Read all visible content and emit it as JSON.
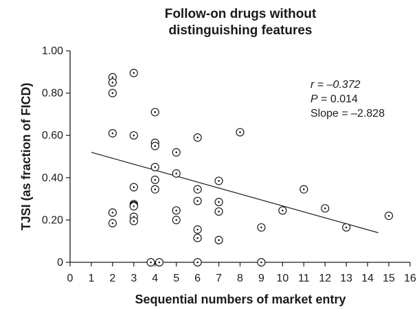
{
  "chart_data": {
    "type": "scatter",
    "title_lines": [
      "Follow-on drugs without",
      "distinguishing features"
    ],
    "xlabel": "Sequential numbers of market entry",
    "ylabel": "TJSI (as fraction of FICD)",
    "xlim": [
      0,
      16
    ],
    "ylim": [
      0,
      1.0
    ],
    "x_ticks": [
      "0",
      "1",
      "2",
      "3",
      "4",
      "5",
      "6",
      "7",
      "8",
      "9",
      "10",
      "11",
      "12",
      "13",
      "14",
      "15",
      "16"
    ],
    "y_ticks": [
      "0",
      "0.20",
      "0.40",
      "0.60",
      "0.80",
      "1.00"
    ],
    "grid": false,
    "stats": {
      "r_label": "r",
      "r_value": " = –0.372",
      "p_label": "P",
      "p_value": " = 0.014",
      "slope_text": "Slope = –2.828"
    },
    "trend_line": {
      "x": [
        1,
        14.5
      ],
      "y": [
        0.52,
        0.14
      ]
    },
    "points": [
      {
        "x": 2,
        "y": 0.875
      },
      {
        "x": 2,
        "y": 0.85
      },
      {
        "x": 2,
        "y": 0.8
      },
      {
        "x": 2,
        "y": 0.61
      },
      {
        "x": 2,
        "y": 0.235
      },
      {
        "x": 2,
        "y": 0.185
      },
      {
        "x": 3,
        "y": 0.895
      },
      {
        "x": 3,
        "y": 0.6
      },
      {
        "x": 3,
        "y": 0.355
      },
      {
        "x": 3,
        "y": 0.275
      },
      {
        "x": 3,
        "y": 0.27
      },
      {
        "x": 3,
        "y": 0.265
      },
      {
        "x": 3,
        "y": 0.215
      },
      {
        "x": 3,
        "y": 0.195
      },
      {
        "x": 3.8,
        "y": 0.0
      },
      {
        "x": 4,
        "y": 0.71
      },
      {
        "x": 4,
        "y": 0.565
      },
      {
        "x": 4,
        "y": 0.55
      },
      {
        "x": 4,
        "y": 0.45
      },
      {
        "x": 4,
        "y": 0.39
      },
      {
        "x": 4,
        "y": 0.345
      },
      {
        "x": 4.2,
        "y": 0.0
      },
      {
        "x": 5,
        "y": 0.52
      },
      {
        "x": 5,
        "y": 0.42
      },
      {
        "x": 5,
        "y": 0.245
      },
      {
        "x": 5,
        "y": 0.2
      },
      {
        "x": 6,
        "y": 0.59
      },
      {
        "x": 6,
        "y": 0.345
      },
      {
        "x": 6,
        "y": 0.29
      },
      {
        "x": 6,
        "y": 0.155
      },
      {
        "x": 6,
        "y": 0.115
      },
      {
        "x": 6,
        "y": 0.0
      },
      {
        "x": 7,
        "y": 0.385
      },
      {
        "x": 7,
        "y": 0.285
      },
      {
        "x": 7,
        "y": 0.24
      },
      {
        "x": 7,
        "y": 0.105
      },
      {
        "x": 8,
        "y": 0.615
      },
      {
        "x": 9,
        "y": 0.165
      },
      {
        "x": 9,
        "y": 0.0
      },
      {
        "x": 10,
        "y": 0.245
      },
      {
        "x": 11,
        "y": 0.345
      },
      {
        "x": 12,
        "y": 0.255
      },
      {
        "x": 13,
        "y": 0.165
      },
      {
        "x": 15,
        "y": 0.22
      }
    ]
  }
}
